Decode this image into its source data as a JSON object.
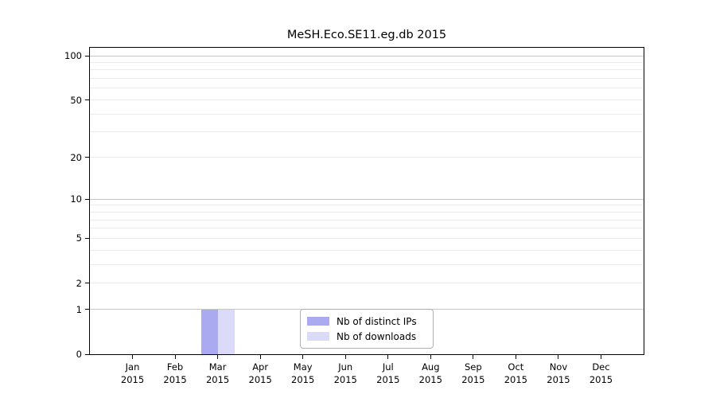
{
  "chart_data": {
    "type": "bar",
    "title": "MeSH.Eco.SE11.eg.db 2015",
    "x_months": [
      "Jan",
      "Feb",
      "Mar",
      "Apr",
      "May",
      "Jun",
      "Jul",
      "Aug",
      "Sep",
      "Oct",
      "Nov",
      "Dec"
    ],
    "x_year": "2015",
    "series": [
      {
        "name": "Nb of distinct IPs",
        "color": "#aaaaf0",
        "values": [
          0,
          0,
          1,
          0,
          0,
          0,
          0,
          0,
          0,
          0,
          0,
          0
        ]
      },
      {
        "name": "Nb of downloads",
        "color": "#dbdbf9",
        "values": [
          0,
          0,
          1,
          0,
          0,
          0,
          0,
          0,
          0,
          0,
          0,
          0
        ]
      }
    ],
    "y_axis": {
      "scale": "log1p",
      "range": [
        0,
        100
      ],
      "major_ticks": [
        0,
        1,
        2,
        5,
        10,
        20,
        50,
        100
      ],
      "minor_gridlines": [
        3,
        4,
        6,
        7,
        8,
        9,
        30,
        40,
        60,
        70,
        80,
        90
      ],
      "emphasized_gridlines": [
        1,
        10,
        100
      ]
    },
    "legend_position": "bottom-center",
    "grid": "horizontal-only"
  },
  "colors": {
    "background": "#ffffff",
    "spine": "#000000",
    "gridline_minor": "#ececec",
    "gridline_emphasis": "#c6c6c6",
    "text": "#000000",
    "legend_border": "#b0b0b0"
  }
}
